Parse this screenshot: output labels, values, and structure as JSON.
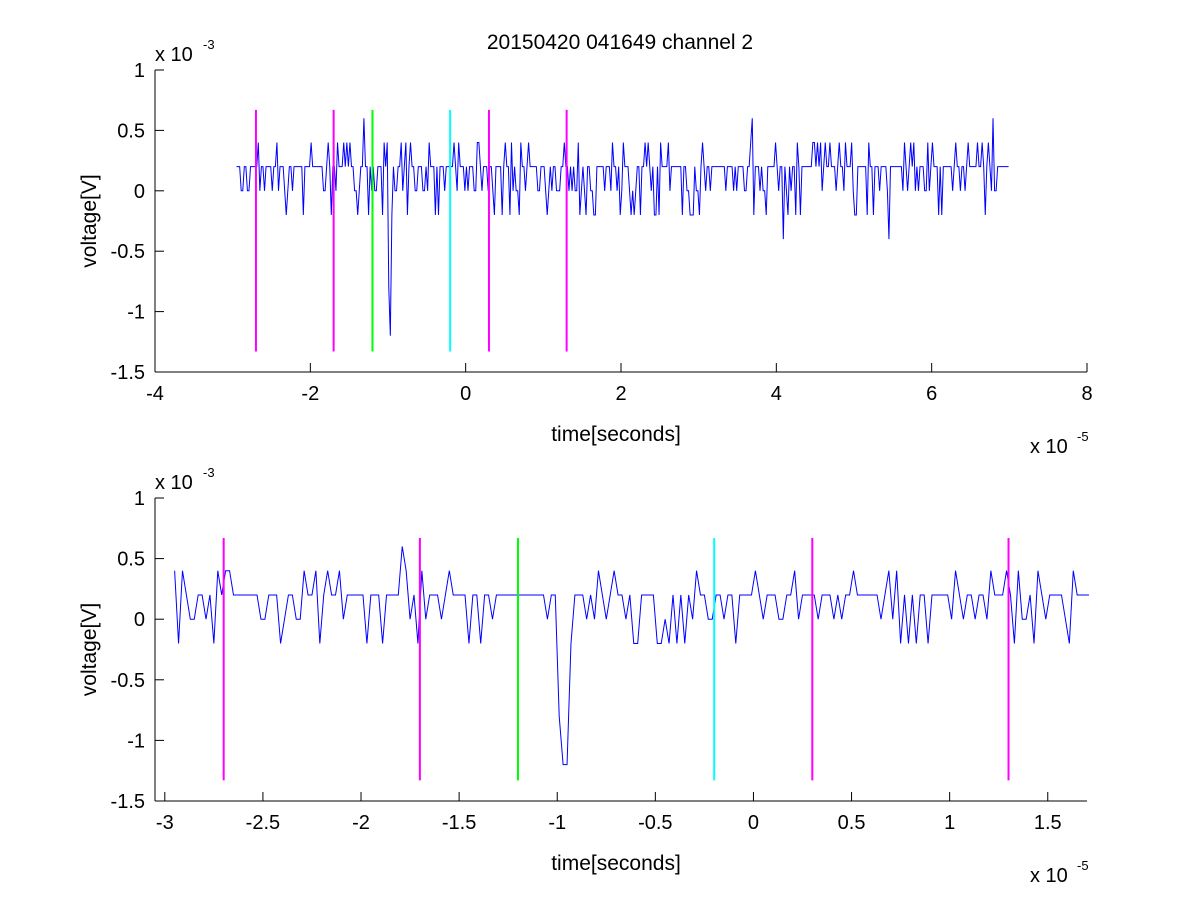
{
  "figure": {
    "title": "20150420 041649 channel 2"
  },
  "chart_data": [
    {
      "type": "line",
      "id": "top",
      "xlabel": "time[seconds]",
      "ylabel": "voltage[V]",
      "x_exponent": "x 10",
      "x_exponent_power": "-5",
      "y_exponent": "x 10",
      "y_exponent_power": "-3",
      "xlim": [
        -4,
        8
      ],
      "ylim": [
        -1.5,
        1
      ],
      "xticks": [
        -4,
        -2,
        0,
        2,
        4,
        6,
        8
      ],
      "xtick_labels": [
        "-4",
        "-2",
        "0",
        "2",
        "4",
        "6",
        "8"
      ],
      "yticks": [
        -1.5,
        -1,
        -0.5,
        0,
        0.5,
        1
      ],
      "ytick_labels": [
        "-1.5",
        "-1",
        "-0.5",
        "0",
        "0.5",
        "1"
      ],
      "grid": false,
      "signal": {
        "color": "#0000ff",
        "x_start": -2.95,
        "x_end": 7.0,
        "seed": 11,
        "pulse": {
          "x": -0.97,
          "min": -1.2
        },
        "points": [
          [
            -1.3,
            0.6
          ],
          [
            -1.05,
            0.4
          ],
          [
            -1.0,
            -0.3
          ],
          [
            -0.99,
            -0.8
          ],
          [
            -0.97,
            -1.2
          ],
          [
            -0.95,
            -0.2
          ],
          [
            3.7,
            0.6
          ],
          [
            4.1,
            -0.4
          ],
          [
            5.45,
            -0.4
          ],
          [
            6.8,
            0.6
          ]
        ]
      },
      "markers": [
        {
          "x": -2.7,
          "color": "#ff00ff"
        },
        {
          "x": -1.7,
          "color": "#ff00ff"
        },
        {
          "x": -1.2,
          "color": "#00ff00"
        },
        {
          "x": -0.2,
          "color": "#00ffff"
        },
        {
          "x": 0.3,
          "color": "#ff00ff"
        },
        {
          "x": 1.3,
          "color": "#ff00ff"
        }
      ],
      "marker_range": [
        -1.33,
        0.67
      ]
    },
    {
      "type": "line",
      "id": "bottom",
      "xlabel": "time[seconds]",
      "ylabel": "voltage[V]",
      "x_exponent": "x 10",
      "x_exponent_power": "-5",
      "y_exponent": "x 10",
      "y_exponent_power": "-3",
      "xlim": [
        -3.05,
        1.7
      ],
      "ylim": [
        -1.5,
        1
      ],
      "xticks": [
        -3,
        -2.5,
        -2,
        -1.5,
        -1,
        -0.5,
        0,
        0.5,
        1,
        1.5
      ],
      "xtick_labels": [
        "-3",
        "-2.5",
        "-2",
        "-1.5",
        "-1",
        "-0.5",
        "0",
        "0.5",
        "1",
        "1.5"
      ],
      "yticks": [
        -1.5,
        -1,
        -0.5,
        0,
        0.5,
        1
      ],
      "ytick_labels": [
        "-1.5",
        "-1",
        "-0.5",
        "0",
        "0.5",
        "1"
      ],
      "grid": false,
      "signal": {
        "color": "#0000ff",
        "x_start": -2.95,
        "x_end": 1.7,
        "seed": 7,
        "pulse": {
          "x": -0.97,
          "min": -1.2
        },
        "points": [
          [
            -2.95,
            0.4
          ],
          [
            -2.9,
            0.2
          ],
          [
            -2.85,
            0.0
          ],
          [
            -1.8,
            0.6
          ],
          [
            -1.78,
            0.4
          ],
          [
            -1.72,
            -0.2
          ],
          [
            -1.05,
            0.0
          ],
          [
            -1.0,
            -0.3
          ],
          [
            -0.99,
            -0.8
          ],
          [
            -0.97,
            -1.2
          ],
          [
            -0.95,
            -1.2
          ],
          [
            -0.93,
            -0.2
          ],
          [
            -0.85,
            0.0
          ],
          [
            0.2,
            0.4
          ],
          [
            0.3,
            0.2
          ]
        ]
      },
      "markers": [
        {
          "x": -2.7,
          "color": "#ff00ff"
        },
        {
          "x": -1.7,
          "color": "#ff00ff"
        },
        {
          "x": -1.2,
          "color": "#00ff00"
        },
        {
          "x": -0.2,
          "color": "#00ffff"
        },
        {
          "x": 0.3,
          "color": "#ff00ff"
        },
        {
          "x": 1.3,
          "color": "#ff00ff"
        }
      ],
      "marker_range": [
        -1.33,
        0.67
      ]
    }
  ]
}
